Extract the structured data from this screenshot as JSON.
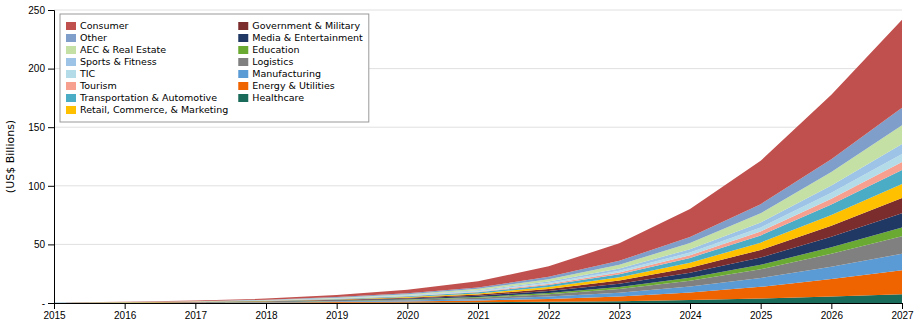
{
  "chart_data": {
    "type": "area",
    "stacked": true,
    "ylabel": "(US$ Billions)",
    "x": [
      2015,
      2016,
      2017,
      2018,
      2019,
      2020,
      2021,
      2022,
      2023,
      2024,
      2025,
      2026,
      2027
    ],
    "xlim": [
      2015,
      2027
    ],
    "xticks": [
      2015,
      2016,
      2017,
      2018,
      2019,
      2020,
      2021,
      2022,
      2023,
      2024,
      2025,
      2026,
      2027
    ],
    "ylim": [
      0,
      250
    ],
    "yticks": [
      {
        "value": 0,
        "label": "-"
      },
      50,
      100,
      150,
      200,
      250
    ],
    "grid": true,
    "legend": "upper-left",
    "series": [
      {
        "name": "Healthcare",
        "color": "#1a6b5a",
        "values": [
          0.02,
          0.05,
          0.08,
          0.15,
          0.25,
          0.4,
          0.6,
          1.0,
          1.6,
          2.5,
          3.8,
          5.5,
          7.5
        ]
      },
      {
        "name": "Energy & Utilities",
        "color": "#f06400",
        "values": [
          0.05,
          0.1,
          0.18,
          0.3,
          0.55,
          0.9,
          1.5,
          2.5,
          4.0,
          6.5,
          10.0,
          15.0,
          20.5
        ]
      },
      {
        "name": "Manufacturing",
        "color": "#5b9bd5",
        "values": [
          0.04,
          0.08,
          0.14,
          0.25,
          0.45,
          0.75,
          1.2,
          2.0,
          3.2,
          5.0,
          7.5,
          10.5,
          14.0
        ]
      },
      {
        "name": "Logistics",
        "color": "#808080",
        "values": [
          0.04,
          0.08,
          0.14,
          0.25,
          0.45,
          0.75,
          1.2,
          2.0,
          3.2,
          5.0,
          7.5,
          11.0,
          15.0
        ]
      },
      {
        "name": "Education",
        "color": "#6aaa32",
        "values": [
          0.02,
          0.04,
          0.08,
          0.14,
          0.25,
          0.4,
          0.65,
          1.1,
          1.7,
          2.6,
          3.8,
          5.5,
          7.5
        ]
      },
      {
        "name": "Media & Entertainment",
        "color": "#1f3864",
        "values": [
          0.03,
          0.07,
          0.12,
          0.22,
          0.38,
          0.62,
          1.0,
          1.7,
          2.7,
          4.2,
          6.2,
          9.0,
          12.0
        ]
      },
      {
        "name": "Government & Military",
        "color": "#7b2c2c",
        "values": [
          0.03,
          0.07,
          0.12,
          0.22,
          0.38,
          0.62,
          1.0,
          1.7,
          2.8,
          4.3,
          6.5,
          9.5,
          13.0
        ]
      },
      {
        "name": "Retail, Commerce, & Marketing",
        "color": "#ffc000",
        "values": [
          0.03,
          0.07,
          0.12,
          0.22,
          0.38,
          0.62,
          1.0,
          1.7,
          2.7,
          4.2,
          6.2,
          9.0,
          12.0
        ]
      },
      {
        "name": "Transportation & Automotive",
        "color": "#4bacc6",
        "values": [
          0.03,
          0.07,
          0.12,
          0.22,
          0.38,
          0.62,
          1.0,
          1.7,
          2.7,
          4.2,
          6.2,
          9.0,
          12.0
        ]
      },
      {
        "name": "Tourism",
        "color": "#f8a090",
        "values": [
          0.02,
          0.04,
          0.07,
          0.12,
          0.2,
          0.33,
          0.55,
          0.9,
          1.5,
          2.3,
          3.4,
          5.0,
          6.8
        ]
      },
      {
        "name": "TIC",
        "color": "#b3dce8",
        "values": [
          0.02,
          0.04,
          0.07,
          0.12,
          0.2,
          0.33,
          0.55,
          0.9,
          1.5,
          2.3,
          3.4,
          5.0,
          6.8
        ]
      },
      {
        "name": "Sports & Fitness",
        "color": "#9dc3e6",
        "values": [
          0.02,
          0.04,
          0.08,
          0.14,
          0.25,
          0.4,
          0.65,
          1.1,
          1.8,
          2.8,
          4.2,
          6.2,
          8.5
        ]
      },
      {
        "name": "AEC & Real Estate",
        "color": "#c5e0a5",
        "values": [
          0.03,
          0.07,
          0.13,
          0.25,
          0.45,
          0.75,
          1.2,
          2.0,
          3.3,
          5.2,
          7.8,
          11.5,
          16.0
        ]
      },
      {
        "name": "Other",
        "color": "#7f9ec9",
        "values": [
          0.03,
          0.07,
          0.13,
          0.25,
          0.45,
          0.75,
          1.2,
          2.0,
          3.3,
          5.2,
          7.8,
          11.0,
          15.0
        ]
      },
      {
        "name": "Consumer",
        "color": "#c0504d",
        "values": [
          0.08,
          0.22,
          0.45,
          0.9,
          1.7,
          3.0,
          5.2,
          9.0,
          15.0,
          24.0,
          37.0,
          55.0,
          75.0
        ]
      }
    ]
  }
}
